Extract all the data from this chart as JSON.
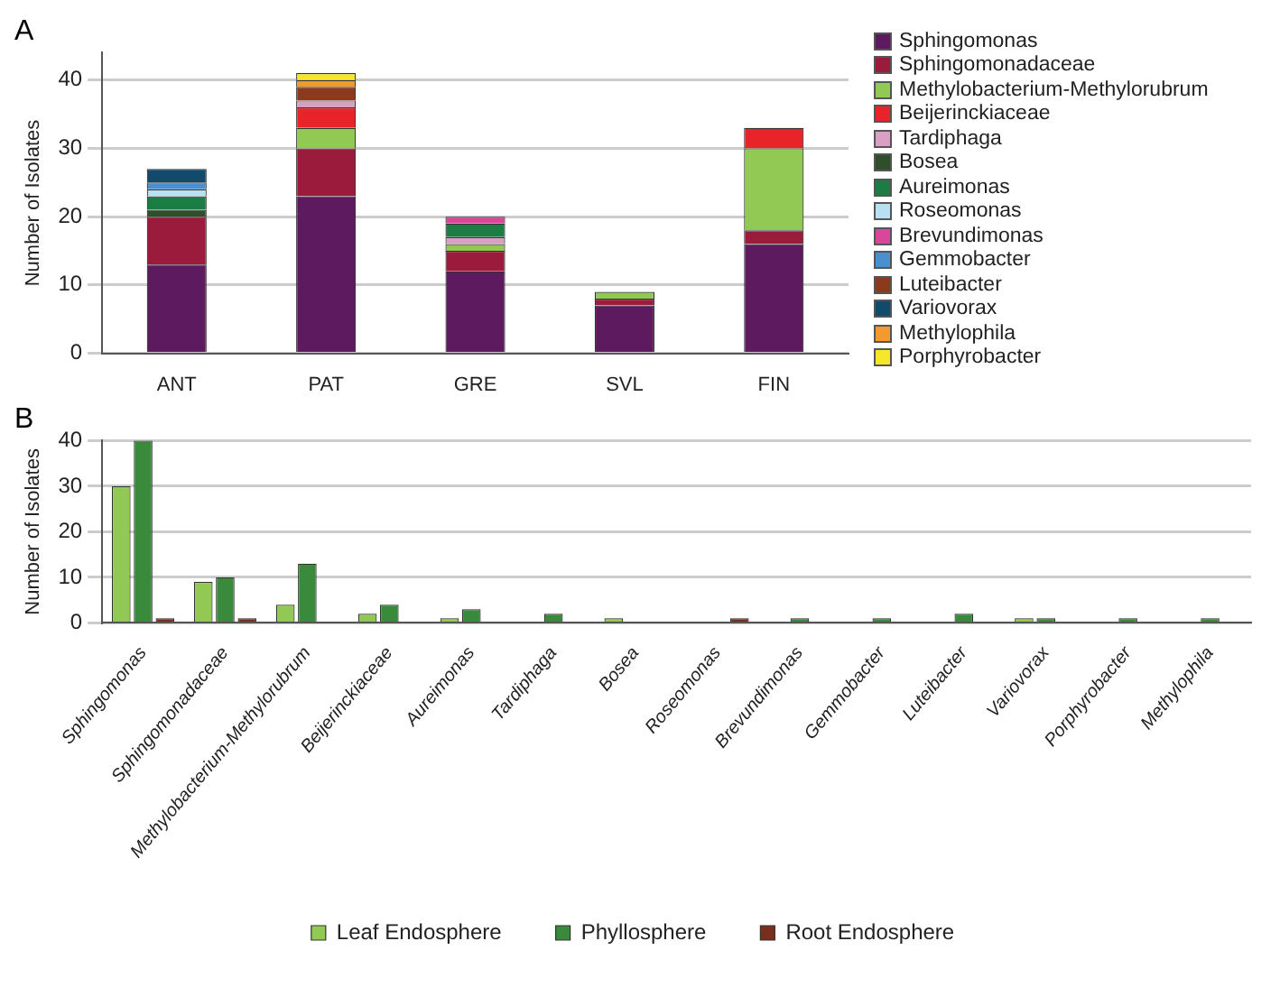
{
  "chart_data": [
    {
      "type": "bar",
      "title": "A",
      "ylabel": "Number of Isolates",
      "categories": [
        "ANT",
        "PAT",
        "GRE",
        "SVL",
        "FIN"
      ],
      "stacked": true,
      "ylim": [
        0,
        44
      ],
      "yticks": [
        0,
        10,
        20,
        30,
        40
      ],
      "grid": "y",
      "legend": "right",
      "series": [
        {
          "name": "Sphingomonas",
          "color": "#5e1a5e",
          "values": [
            13,
            23,
            12,
            7,
            16
          ]
        },
        {
          "name": "Sphingomonadaceae",
          "color": "#9b1b3c",
          "values": [
            7,
            7,
            3,
            1,
            2
          ]
        },
        {
          "name": "Methylobacterium-Methylorubrum",
          "color": "#92c954",
          "values": [
            0,
            3,
            1,
            1,
            12
          ]
        },
        {
          "name": "Beijerinckiaceae",
          "color": "#e8232a",
          "values": [
            0,
            3,
            0,
            0,
            3
          ]
        },
        {
          "name": "Tardiphaga",
          "color": "#d9a0c4",
          "values": [
            0,
            1,
            1,
            0,
            0
          ]
        },
        {
          "name": "Bosea",
          "color": "#2f4f2a",
          "values": [
            1,
            0,
            0,
            0,
            0
          ]
        },
        {
          "name": "Aureimonas",
          "color": "#1b7d43",
          "values": [
            2,
            0,
            2,
            0,
            0
          ]
        },
        {
          "name": "Roseomonas",
          "color": "#b8e0f0",
          "values": [
            1,
            0,
            0,
            0,
            0
          ]
        },
        {
          "name": "Brevundimonas",
          "color": "#d9479a",
          "values": [
            0,
            0,
            1,
            0,
            0
          ]
        },
        {
          "name": "Gemmobacter",
          "color": "#4a8fd0",
          "values": [
            1,
            0,
            0,
            0,
            0
          ]
        },
        {
          "name": "Luteibacter",
          "color": "#8b3a1e",
          "values": [
            0,
            2,
            0,
            0,
            0
          ]
        },
        {
          "name": "Variovorax",
          "color": "#124a6b",
          "values": [
            2,
            0,
            0,
            0,
            0
          ]
        },
        {
          "name": "Methylophila",
          "color": "#f29a2e",
          "values": [
            0,
            1,
            0,
            0,
            0
          ]
        },
        {
          "name": "Porphyrobacter",
          "color": "#f5e62a",
          "values": [
            0,
            1,
            0,
            0,
            0
          ]
        }
      ]
    },
    {
      "type": "bar",
      "title": "B",
      "ylabel": "Number of Isolates",
      "categories": [
        "Sphingomonas",
        "Sphingomonadaceae",
        "Methylobacterium-Methylorubrum",
        "Beijerinckiaceae",
        "Aureimonas",
        "Tardiphaga",
        "Bosea",
        "Roseomonas",
        "Brevundimonas",
        "Gemmobacter",
        "Luteibacter",
        "Variovorax",
        "Porphyrobacter",
        "Methylophila"
      ],
      "ylim": [
        0,
        40
      ],
      "yticks": [
        0,
        10,
        20,
        30,
        40
      ],
      "grid": "y",
      "legend": "bottom",
      "series": [
        {
          "name": "Leaf Endosphere",
          "color": "#92c954",
          "values": [
            30,
            9,
            4,
            2,
            1,
            0,
            1,
            0,
            0,
            0,
            0,
            1,
            0,
            0
          ]
        },
        {
          "name": "Phyllosphere",
          "color": "#3a8a3c",
          "values": [
            40,
            10,
            13,
            4,
            3,
            2,
            0,
            0,
            1,
            1,
            2,
            1,
            1,
            1
          ]
        },
        {
          "name": "Root Endosphere",
          "color": "#7a2e1e",
          "values": [
            1,
            1,
            0,
            0,
            0,
            0,
            0,
            1,
            0,
            0,
            0,
            0,
            0,
            0
          ]
        }
      ]
    }
  ]
}
